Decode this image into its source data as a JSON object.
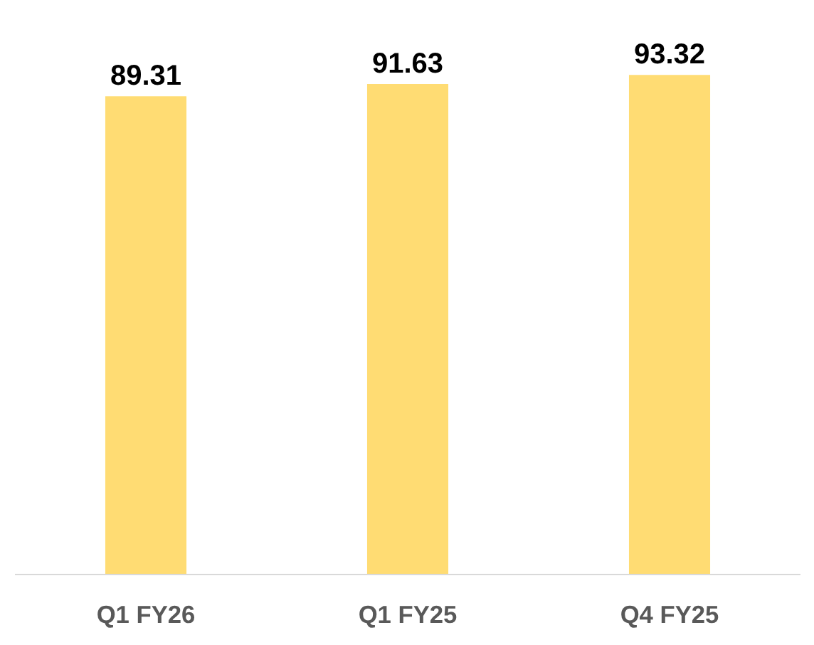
{
  "chart_data": {
    "type": "bar",
    "categories": [
      "Q1 FY26",
      "Q1 FY25",
      "Q4 FY25"
    ],
    "values": [
      89.31,
      91.63,
      93.32
    ],
    "color": "#ffdc73",
    "data_labels": true
  }
}
